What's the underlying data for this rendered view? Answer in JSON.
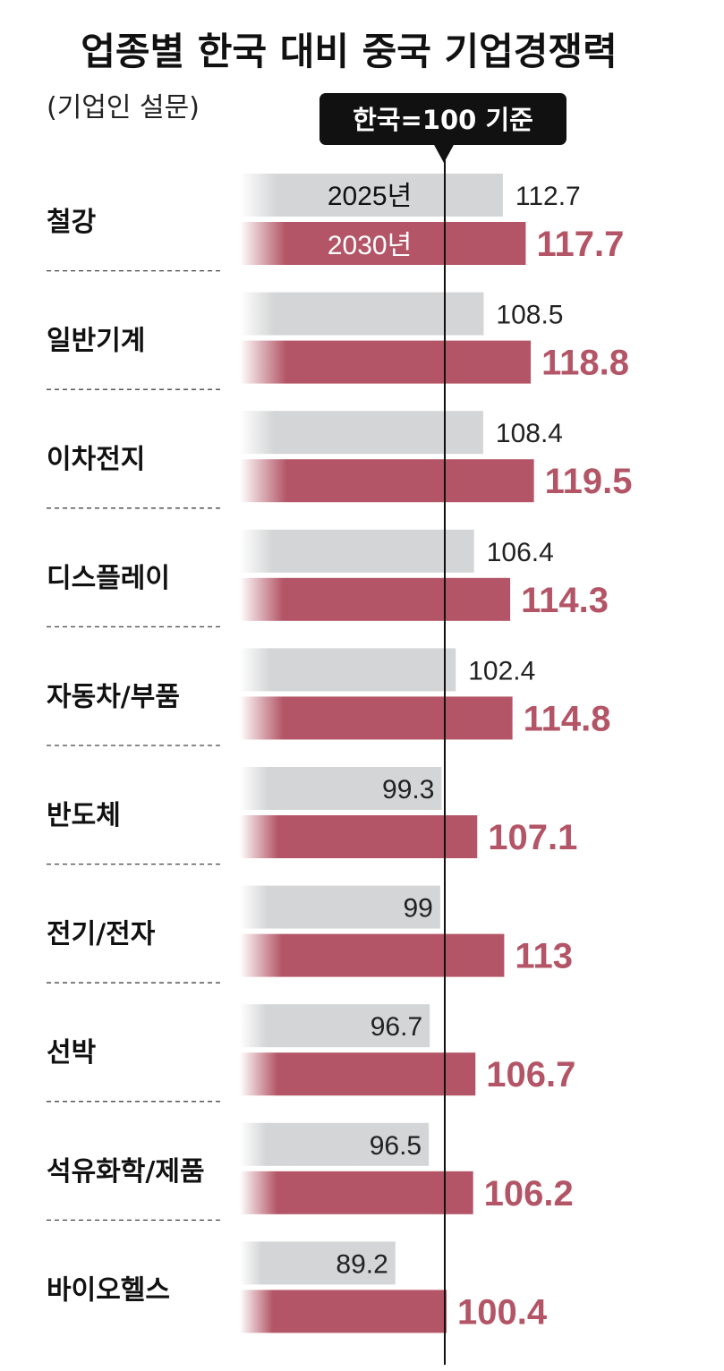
{
  "chart_data": {
    "type": "bar",
    "orientation": "horizontal",
    "title": "업종별 한국 대비 중국 기업경쟁력",
    "subtitle": "(기업인 설문)",
    "reference": {
      "value": 100,
      "label": "한국=100 기준"
    },
    "categories": [
      "철강",
      "일반기계",
      "이차전지",
      "디스플레이",
      "자동차/부품",
      "반도체",
      "전기/전자",
      "선박",
      "석유화학/제품",
      "바이오헬스"
    ],
    "series": [
      {
        "name": "2025년",
        "color": "#d4d5d6",
        "values": [
          112.7,
          108.5,
          108.4,
          106.4,
          102.4,
          99.3,
          99,
          96.7,
          96.5,
          89.2
        ],
        "labels": [
          "112.7",
          "108.5",
          "108.4",
          "106.4",
          "102.4",
          "99.3",
          "99",
          "96.7",
          "96.5",
          "89.2"
        ]
      },
      {
        "name": "2030년",
        "color": "#b35566",
        "values": [
          117.7,
          118.8,
          119.5,
          114.3,
          114.8,
          107.1,
          113,
          106.7,
          106.2,
          100.4
        ],
        "labels": [
          "117.7",
          "118.8",
          "119.5",
          "114.3",
          "114.8",
          "107.1",
          "113",
          "106.7",
          "106.2",
          "100.4"
        ]
      }
    ],
    "legend": "inside-first-category",
    "grid": false
  }
}
